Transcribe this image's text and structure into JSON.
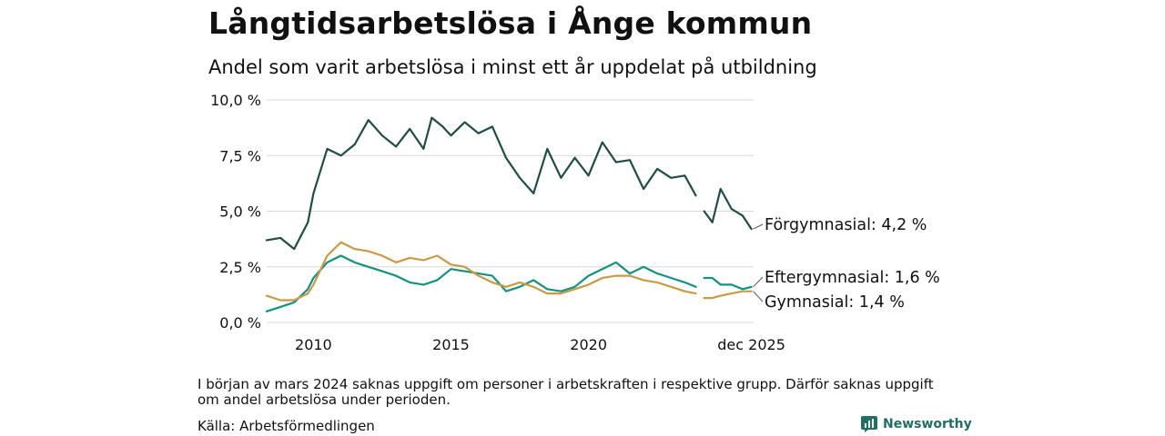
{
  "title": "Långtidsarbetslösa i Ånge kommun",
  "subtitle": "Andel som varit arbetslösa i minst ett år uppdelat på utbildning",
  "note": "I början av mars 2024 saknas uppgift om personer i arbetskraften i respektive grupp. Därför saknas uppgift om andel arbetslösa under perioden.",
  "source": "Källa: Arbetsförmedlingen",
  "brand": "Newsworthy",
  "colors": {
    "forgymnasial": "#1f4d44",
    "eftergymnasial": "#16917f",
    "gymnasial": "#c99a45",
    "grid": "#d8d8d8",
    "brand": "#1f6f62"
  },
  "chart_data": {
    "type": "line",
    "title": "Långtidsarbetslösa i Ånge kommun",
    "subtitle": "Andel som varit arbetslösa i minst ett år uppdelat på utbildning",
    "xlabel": "",
    "ylabel": "",
    "xlim": [
      2008.3,
      2026.0
    ],
    "ylim": [
      0,
      10
    ],
    "yticks": [
      0,
      2.5,
      5,
      7.5,
      10
    ],
    "ytick_labels": [
      "0,0 %",
      "2,5 %",
      "5,0 %",
      "7,5 %",
      "10,0 %"
    ],
    "xticks": [
      2010,
      2015,
      2020,
      2025.92
    ],
    "xtick_labels": [
      "2010",
      "2015",
      "2020",
      "dec 2025"
    ],
    "grid": true,
    "gap": [
      2023.9,
      2024.2
    ],
    "series": [
      {
        "name": "Förgymnasial",
        "label": "Förgymnasial: 4,2 %",
        "color": "#1f4d44",
        "x": [
          2008.3,
          2008.8,
          2009.3,
          2009.8,
          2010.0,
          2010.5,
          2011.0,
          2011.5,
          2012.0,
          2012.5,
          2013.0,
          2013.5,
          2014.0,
          2014.3,
          2014.7,
          2015.0,
          2015.5,
          2016.0,
          2016.5,
          2017.0,
          2017.5,
          2018.0,
          2018.5,
          2019.0,
          2019.5,
          2020.0,
          2020.5,
          2021.0,
          2021.5,
          2022.0,
          2022.5,
          2023.0,
          2023.5,
          2023.9,
          2024.2,
          2024.5,
          2024.8,
          2025.2,
          2025.6,
          2025.92
        ],
        "y": [
          3.7,
          3.8,
          3.3,
          4.5,
          5.8,
          7.8,
          7.5,
          8.0,
          9.1,
          8.4,
          7.9,
          8.7,
          7.8,
          9.2,
          8.8,
          8.4,
          9.0,
          8.5,
          8.8,
          7.4,
          6.5,
          5.8,
          7.8,
          6.5,
          7.4,
          6.6,
          8.1,
          7.2,
          7.3,
          6.0,
          6.9,
          6.5,
          6.6,
          5.7,
          5.0,
          4.5,
          6.0,
          5.1,
          4.8,
          4.2
        ]
      },
      {
        "name": "Eftergymnasial",
        "label": "Eftergymnasial: 1,6 %",
        "color": "#16917f",
        "x": [
          2008.3,
          2008.8,
          2009.3,
          2009.8,
          2010.0,
          2010.5,
          2011.0,
          2011.5,
          2012.0,
          2012.5,
          2013.0,
          2013.5,
          2014.0,
          2014.5,
          2015.0,
          2015.5,
          2016.0,
          2016.5,
          2017.0,
          2017.5,
          2018.0,
          2018.5,
          2019.0,
          2019.5,
          2020.0,
          2020.5,
          2021.0,
          2021.5,
          2022.0,
          2022.5,
          2023.0,
          2023.5,
          2023.9,
          2024.2,
          2024.5,
          2024.8,
          2025.2,
          2025.6,
          2025.92
        ],
        "y": [
          0.5,
          0.7,
          0.9,
          1.5,
          2.0,
          2.7,
          3.0,
          2.7,
          2.5,
          2.3,
          2.1,
          1.8,
          1.7,
          1.9,
          2.4,
          2.3,
          2.2,
          2.1,
          1.4,
          1.6,
          1.9,
          1.5,
          1.4,
          1.6,
          2.1,
          2.4,
          2.7,
          2.2,
          2.5,
          2.2,
          2.0,
          1.8,
          1.6,
          2.0,
          2.0,
          1.7,
          1.7,
          1.5,
          1.6
        ]
      },
      {
        "name": "Gymnasial",
        "label": "Gymnasial: 1,4 %",
        "color": "#c99a45",
        "x": [
          2008.3,
          2008.8,
          2009.3,
          2009.8,
          2010.0,
          2010.5,
          2011.0,
          2011.5,
          2012.0,
          2012.5,
          2013.0,
          2013.5,
          2014.0,
          2014.5,
          2015.0,
          2015.5,
          2016.0,
          2016.5,
          2017.0,
          2017.5,
          2018.0,
          2018.5,
          2019.0,
          2019.5,
          2020.0,
          2020.5,
          2021.0,
          2021.5,
          2022.0,
          2022.5,
          2023.0,
          2023.5,
          2023.9,
          2024.2,
          2024.5,
          2024.8,
          2025.2,
          2025.6,
          2025.92
        ],
        "y": [
          1.2,
          1.0,
          1.0,
          1.3,
          1.7,
          3.0,
          3.6,
          3.3,
          3.2,
          3.0,
          2.7,
          2.9,
          2.8,
          3.0,
          2.6,
          2.5,
          2.1,
          1.8,
          1.6,
          1.8,
          1.6,
          1.3,
          1.3,
          1.5,
          1.7,
          2.0,
          2.1,
          2.1,
          1.9,
          1.8,
          1.6,
          1.4,
          1.3,
          1.1,
          1.1,
          1.2,
          1.3,
          1.4,
          1.4
        ]
      }
    ]
  }
}
